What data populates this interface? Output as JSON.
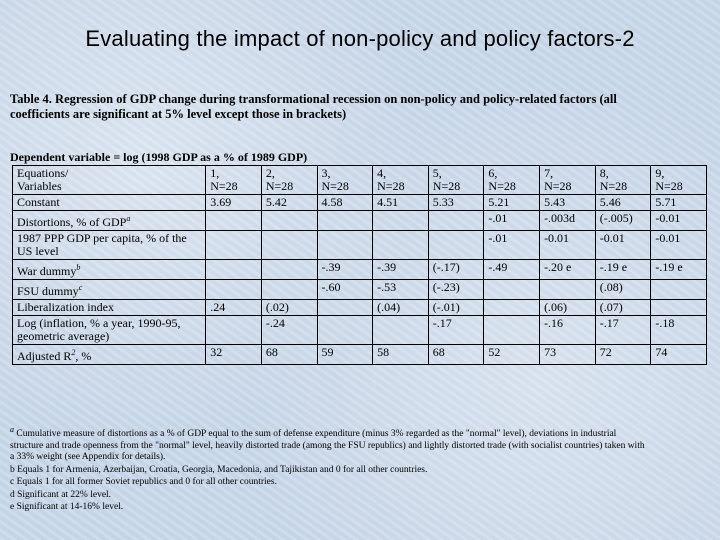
{
  "slide_title": "Evaluating the impact of non-policy and policy factors-2",
  "table_caption": "Table 4. Regression of GDP change during transformational recession on non-policy and policy-related factors (all coefficients are significant at 5% level except those in brackets)",
  "dependent_variable": "Dependent variable = log (1998 GDP as a % of 1989 GDP)",
  "header_label_line1": "Equations/",
  "header_label_line2": "Variables",
  "equations": [
    {
      "num": "1,",
      "n": "N=28"
    },
    {
      "num": "2,",
      "n": "N=28"
    },
    {
      "num": "3,",
      "n": "N=28"
    },
    {
      "num": "4,",
      "n": "N=28"
    },
    {
      "num": "5,",
      "n": "N=28"
    },
    {
      "num": "6,",
      "n": "N=28"
    },
    {
      "num": "7,",
      "n": "N=28"
    },
    {
      "num": "8,",
      "n": "N=28"
    },
    {
      "num": "9,",
      "n": "N=28"
    }
  ],
  "rows": [
    {
      "label": "Constant",
      "sup": "",
      "cells": [
        "3.69",
        "5.42",
        "4.58",
        "4.51",
        "5.33",
        "5.21",
        "5.43",
        "5.46",
        "5.71"
      ]
    },
    {
      "label": "Distortions, % of GDP",
      "sup": "a",
      "cells": [
        "",
        "",
        "",
        "",
        "",
        "-.01",
        "-.003d",
        "(-.005)",
        "-0.01"
      ]
    },
    {
      "label": "1987 PPP GDP per capita, % of the US level",
      "sup": "",
      "cells": [
        "",
        "",
        "",
        "",
        "",
        "-.01",
        "-0.01",
        "-0.01",
        "-0.01"
      ]
    },
    {
      "label": "War dummy",
      "sup": "b",
      "cells": [
        "",
        "",
        "-.39",
        "-.39",
        "(-.17)",
        "-.49",
        "-.20 e",
        "-.19 e",
        "-.19 e"
      ]
    },
    {
      "label": "FSU dummy",
      "sup": "c",
      "cells": [
        "",
        "",
        "-.60",
        "-.53",
        "(-.23)",
        "",
        "",
        "(.08)",
        ""
      ]
    },
    {
      "label": "Liberalization index",
      "sup": "",
      "cells": [
        ".24",
        "(.02)",
        "",
        "(.04)",
        "(-.01)",
        "",
        "(.06)",
        "(.07)",
        ""
      ]
    },
    {
      "label": "Log (inflation, % a year, 1990-95, geometric average)",
      "sup": "",
      "cells": [
        "",
        "-.24",
        "",
        "",
        "-.17",
        "",
        "-.16",
        "-.17",
        "-.18"
      ]
    },
    {
      "label": "Adjusted R",
      "sup": "2",
      "label_suffix": ", %",
      "cells": [
        "32",
        "68",
        "59",
        "58",
        "68",
        "52",
        "73",
        "72",
        "74"
      ]
    }
  ],
  "notes": {
    "a_mark": "a",
    "a": "Cumulative measure of distortions as a % of GDP equal to the sum of defense expenditure (minus 3% regarded as the \"normal\" level), deviations in industrial structure and trade openness from the \"normal\" level, heavily distorted trade (among the FSU republics) and lightly distorted trade (with socialist countries) taken with a 33% weight (see Appendix for details).",
    "b": "b Equals 1 for Armenia, Azerbaijan, Croatia, Georgia, Macedonia, and Tajikistan and 0 for all other countries.",
    "c": "c Equals 1 for all former Soviet republics and 0 for all other countries.",
    "d": "d Significant at 22% level.",
    "e": "e Significant at 14-16% level."
  }
}
